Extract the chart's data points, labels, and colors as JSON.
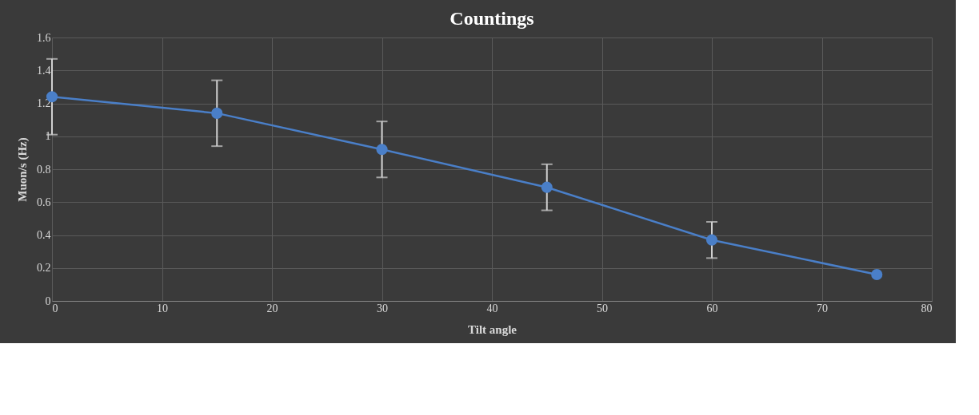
{
  "chart_data": {
    "type": "line",
    "title": "Countings",
    "xlabel": "Tilt angle",
    "ylabel": "Muon/s (Hz)",
    "x": [
      0,
      15,
      30,
      45,
      60,
      75
    ],
    "series": [
      {
        "color": "#4a7fc8",
        "values": [
          1.24,
          1.14,
          0.92,
          0.69,
          0.37,
          0.16
        ],
        "errors": [
          0.23,
          0.2,
          0.17,
          0.14,
          0.11,
          null
        ]
      }
    ],
    "xlim": [
      0,
      80
    ],
    "xticks": [
      0,
      10,
      20,
      30,
      40,
      50,
      60,
      70,
      80
    ],
    "ylim": [
      0,
      1.6
    ],
    "yticks": [
      0,
      0.2,
      0.4,
      0.6,
      0.8,
      1,
      1.2,
      1.4,
      1.6
    ],
    "grid": true,
    "marker": "circle",
    "line_style": "solid"
  }
}
